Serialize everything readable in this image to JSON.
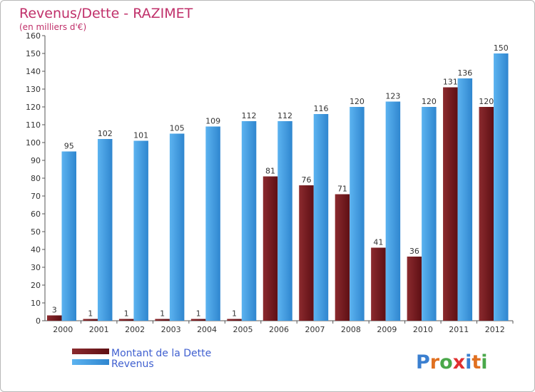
{
  "chart_data": {
    "type": "bar",
    "title": "Revenus/Dette - RAZIMET",
    "subtitle": "(en milliers d'€)",
    "categories": [
      "2000",
      "2001",
      "2002",
      "2003",
      "2004",
      "2005",
      "2006",
      "2007",
      "2008",
      "2009",
      "2010",
      "2011",
      "2012"
    ],
    "series": [
      {
        "name": "Montant de la Dette",
        "color": "#7a1e22",
        "values": [
          3,
          1,
          1,
          1,
          1,
          1,
          81,
          76,
          71,
          41,
          36,
          131,
          120
        ]
      },
      {
        "name": "Revenus",
        "color": "#4aa3e6",
        "values": [
          95,
          102,
          101,
          105,
          109,
          112,
          112,
          116,
          120,
          123,
          120,
          136,
          150
        ]
      }
    ],
    "ylim": [
      0,
      160
    ],
    "ytick_step": 10,
    "grid": false,
    "legend_position": "bottom-left"
  },
  "watermark": {
    "text": "Proxiti"
  },
  "colors": {
    "title": "#c0306a",
    "legend_text": "#4060d0",
    "axis": "#555555"
  }
}
